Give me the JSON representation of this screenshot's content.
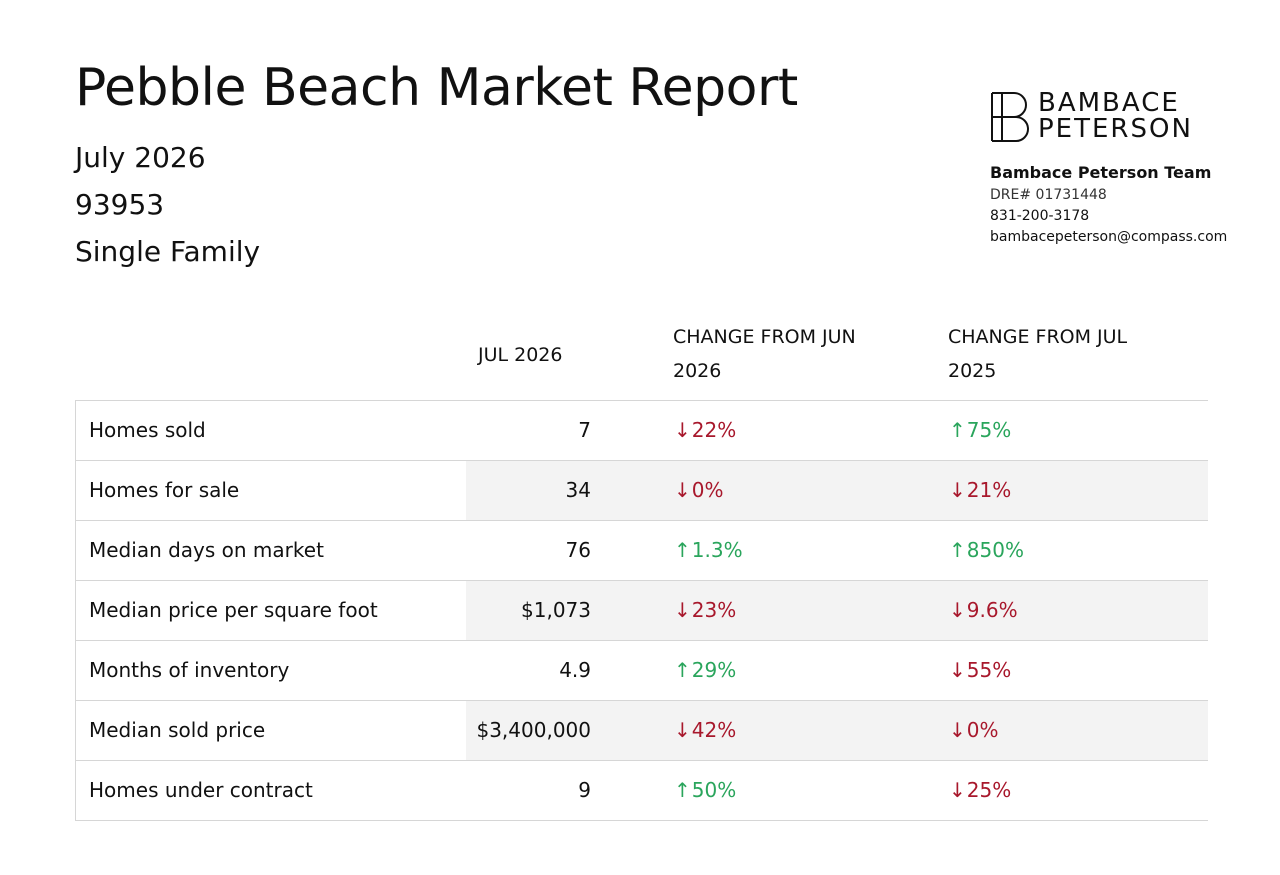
{
  "report": {
    "title": "Pebble Beach Market Report",
    "month": "July 2026",
    "zip": "93953",
    "property_type": "Single Family"
  },
  "brand": {
    "logo_line1": "BAMBACE",
    "logo_line2": "PETERSON",
    "team_name": "Bambace Peterson Team",
    "dre": "DRE# 01731448",
    "phone": "831-200-3178",
    "email": "bambacepeterson@compass.com"
  },
  "colors": {
    "down": "#a8182c",
    "up": "#2aa55c"
  },
  "table": {
    "headers": {
      "current": "JUL 2026",
      "mom_line1": "CHANGE FROM JUN",
      "mom_line2": "2026",
      "yoy_line1": "CHANGE FROM JUL",
      "yoy_line2": "2025"
    },
    "rows": [
      {
        "label": "Homes sold",
        "value": "7",
        "mom": "22%",
        "mom_dir": "down",
        "yoy": "75%",
        "yoy_dir": "up"
      },
      {
        "label": "Homes for sale",
        "value": "34",
        "mom": "0%",
        "mom_dir": "down",
        "yoy": "21%",
        "yoy_dir": "down"
      },
      {
        "label": "Median days on market",
        "value": "76",
        "mom": "1.3%",
        "mom_dir": "up",
        "yoy": "850%",
        "yoy_dir": "up"
      },
      {
        "label": "Median price per square foot",
        "value": "$1,073",
        "mom": "23%",
        "mom_dir": "down",
        "yoy": "9.6%",
        "yoy_dir": "down"
      },
      {
        "label": "Months of inventory",
        "value": "4.9",
        "mom": "29%",
        "mom_dir": "up",
        "yoy": "55%",
        "yoy_dir": "down"
      },
      {
        "label": "Median sold price",
        "value": "$3,400,000",
        "mom": "42%",
        "mom_dir": "down",
        "yoy": "0%",
        "yoy_dir": "down"
      },
      {
        "label": "Homes under contract",
        "value": "9",
        "mom": "50%",
        "mom_dir": "up",
        "yoy": "25%",
        "yoy_dir": "down"
      }
    ]
  }
}
